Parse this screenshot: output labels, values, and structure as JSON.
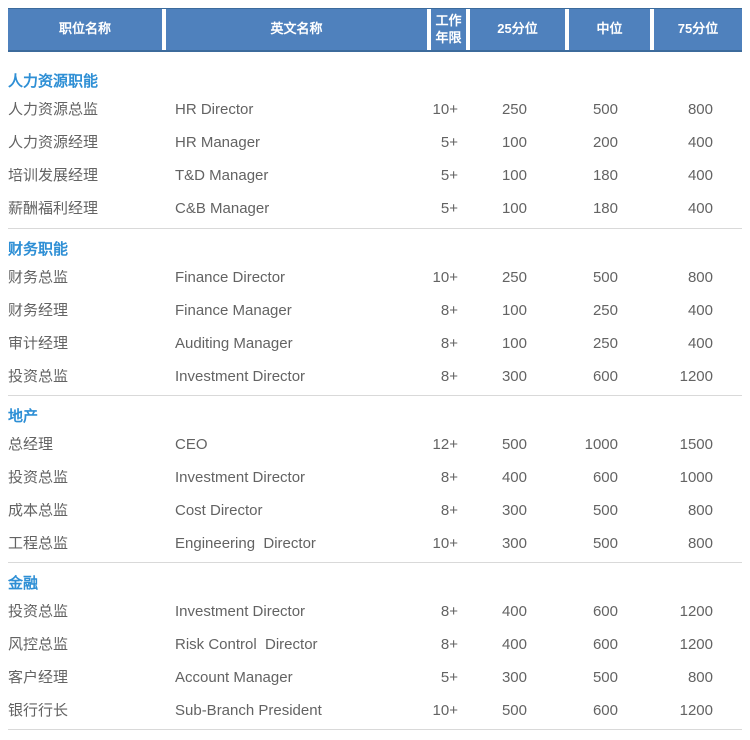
{
  "header": {
    "columns": [
      "职位名称",
      "英文名称",
      "工作年限",
      "25分位",
      "中位",
      "75分位"
    ]
  },
  "sections": [
    {
      "title": "人力资源职能",
      "rows": [
        {
          "cn": "人力资源总监",
          "en": "HR Director",
          "years": "10+",
          "p25": "250",
          "median": "500",
          "p75": "800"
        },
        {
          "cn": "人力资源经理",
          "en": "HR Manager",
          "years": "5+",
          "p25": "100",
          "median": "200",
          "p75": "400"
        },
        {
          "cn": "培训发展经理",
          "en": "T&D Manager",
          "years": "5+",
          "p25": "100",
          "median": "180",
          "p75": "400"
        },
        {
          "cn": "薪酬福利经理",
          "en": "C&B Manager",
          "years": "5+",
          "p25": "100",
          "median": "180",
          "p75": "400"
        }
      ]
    },
    {
      "title": "财务职能",
      "rows": [
        {
          "cn": "财务总监",
          "en": "Finance Director",
          "years": "10+",
          "p25": "250",
          "median": "500",
          "p75": "800"
        },
        {
          "cn": "财务经理",
          "en": "Finance Manager",
          "years": "8+",
          "p25": "100",
          "median": "250",
          "p75": "400"
        },
        {
          "cn": "审计经理",
          "en": "Auditing Manager",
          "years": "8+",
          "p25": "100",
          "median": "250",
          "p75": "400"
        },
        {
          "cn": "投资总监",
          "en": "Investment Director",
          "years": "8+",
          "p25": "300",
          "median": "600",
          "p75": "1200"
        }
      ]
    },
    {
      "title": "地产",
      "rows": [
        {
          "cn": "总经理",
          "en": "CEO",
          "years": "12+",
          "p25": "500",
          "median": "1000",
          "p75": "1500"
        },
        {
          "cn": "投资总监",
          "en": "Investment Director",
          "years": "8+",
          "p25": "400",
          "median": "600",
          "p75": "1000"
        },
        {
          "cn": "成本总监",
          "en": "Cost Director",
          "years": "8+",
          "p25": "300",
          "median": "500",
          "p75": "800"
        },
        {
          "cn": "工程总监",
          "en": "Engineering  Director",
          "years": "10+",
          "p25": "300",
          "median": "500",
          "p75": "800"
        }
      ]
    },
    {
      "title": "金融",
      "rows": [
        {
          "cn": "投资总监",
          "en": "Investment Director",
          "years": "8+",
          "p25": "400",
          "median": "600",
          "p75": "1200"
        },
        {
          "cn": "风控总监",
          "en": "Risk Control  Director",
          "years": "8+",
          "p25": "400",
          "median": "600",
          "p75": "1200"
        },
        {
          "cn": "客户经理",
          "en": "Account Manager",
          "years": "5+",
          "p25": "300",
          "median": "500",
          "p75": "800"
        },
        {
          "cn": "银行行长",
          "en": "Sub-Branch President",
          "years": "10+",
          "p25": "500",
          "median": "600",
          "p75": "1200"
        }
      ]
    }
  ],
  "colors": {
    "header_bg": "#4f81bd",
    "header_border": "#3c6b9c",
    "header_text": "#ffffff",
    "section_title": "#2e8fd5",
    "body_text": "#636363",
    "divider": "#d9d9d9"
  }
}
